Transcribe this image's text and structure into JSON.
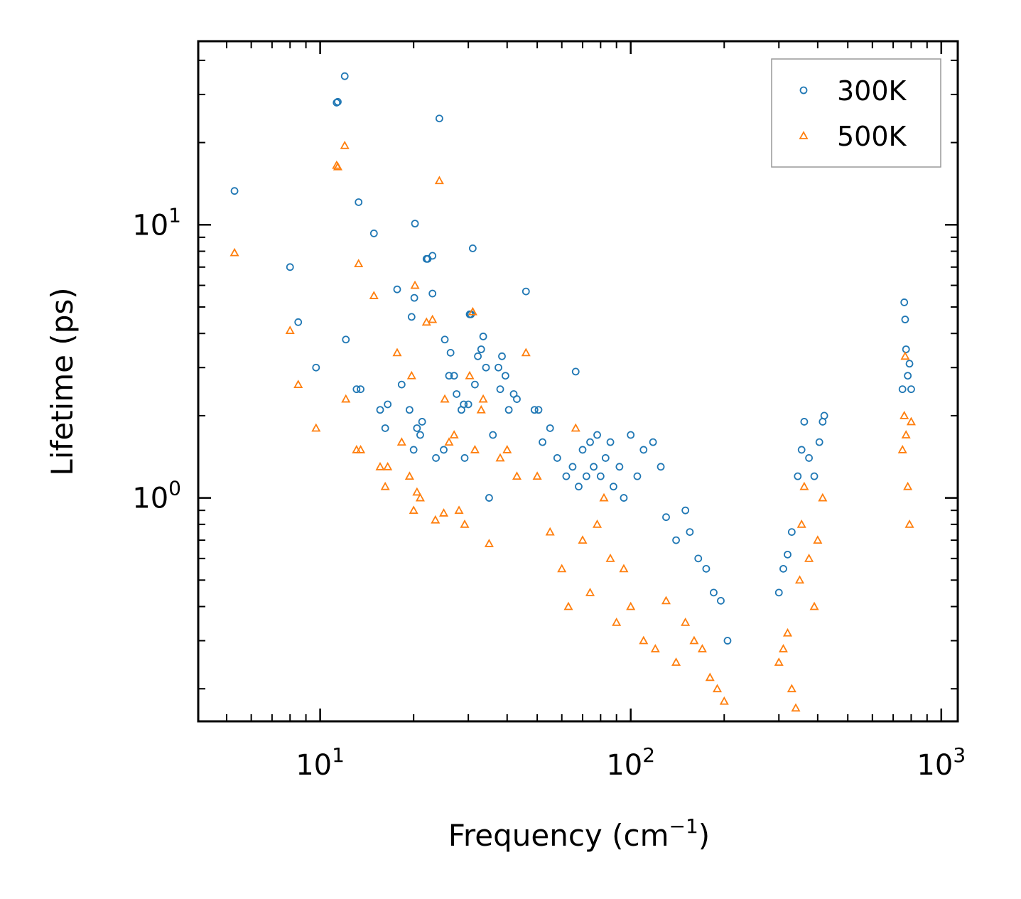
{
  "chart_data": {
    "type": "scatter",
    "title": "",
    "xlabel": "Frequency (cm",
    "xlabel_sup": "−1",
    "xlabel_end": ")",
    "ylabel": "Lifetime (ps)",
    "xscale": "log",
    "yscale": "log",
    "xlim": [
      4.05,
      1130
    ],
    "ylim": [
      0.152,
      47
    ],
    "x_ticks": [
      {
        "value": 10,
        "base": "10",
        "exp": "1"
      },
      {
        "value": 100,
        "base": "10",
        "exp": "2"
      },
      {
        "value": 1000,
        "base": "10",
        "exp": "3"
      }
    ],
    "y_ticks": [
      {
        "value": 1,
        "base": "10",
        "exp": "0"
      },
      {
        "value": 10,
        "base": "10",
        "exp": "1"
      }
    ],
    "legend_position": "top-right",
    "series": [
      {
        "name": "300K",
        "marker": "circle",
        "color": "#1f77b4",
        "points": [
          [
            5.3,
            13.3
          ],
          [
            8.0,
            7.0
          ],
          [
            8.5,
            4.4
          ],
          [
            9.7,
            3.0
          ],
          [
            11.3,
            28.0
          ],
          [
            11.4,
            28.2
          ],
          [
            12.0,
            35.0
          ],
          [
            12.1,
            3.8
          ],
          [
            13.1,
            2.5
          ],
          [
            13.3,
            12.1
          ],
          [
            13.5,
            2.5
          ],
          [
            14.9,
            9.3
          ],
          [
            15.6,
            2.1
          ],
          [
            16.5,
            2.2
          ],
          [
            16.2,
            1.8
          ],
          [
            17.7,
            5.8
          ],
          [
            18.3,
            2.6
          ],
          [
            19.4,
            2.1
          ],
          [
            19.7,
            4.6
          ],
          [
            20.0,
            1.5
          ],
          [
            20.1,
            5.4
          ],
          [
            20.2,
            10.1
          ],
          [
            20.5,
            1.8
          ],
          [
            21.0,
            1.7
          ],
          [
            21.3,
            1.9
          ],
          [
            22.0,
            7.5
          ],
          [
            22.2,
            7.5
          ],
          [
            23.0,
            7.7
          ],
          [
            23.0,
            5.6
          ],
          [
            23.6,
            1.4
          ],
          [
            24.2,
            24.5
          ],
          [
            25.0,
            1.5
          ],
          [
            25.2,
            3.8
          ],
          [
            26.0,
            2.8
          ],
          [
            26.3,
            3.4
          ],
          [
            27.0,
            2.8
          ],
          [
            27.5,
            2.4
          ],
          [
            28.5,
            2.1
          ],
          [
            29.0,
            2.2
          ],
          [
            29.2,
            1.4
          ],
          [
            30.0,
            2.2
          ],
          [
            30.3,
            4.7
          ],
          [
            30.6,
            4.7
          ],
          [
            31.0,
            8.2
          ],
          [
            31.5,
            2.6
          ],
          [
            32.2,
            3.3
          ],
          [
            33.0,
            3.5
          ],
          [
            33.5,
            3.9
          ],
          [
            34.2,
            3.0
          ],
          [
            35.0,
            1.0
          ],
          [
            36.0,
            1.7
          ],
          [
            37.5,
            3.0
          ],
          [
            38.0,
            2.5
          ],
          [
            38.5,
            3.3
          ],
          [
            39.5,
            2.8
          ],
          [
            40.5,
            2.1
          ],
          [
            42.0,
            2.4
          ],
          [
            43.0,
            2.3
          ],
          [
            46.0,
            5.7
          ],
          [
            49.0,
            2.1
          ],
          [
            50.5,
            2.1
          ],
          [
            52.0,
            1.6
          ],
          [
            55.0,
            1.8
          ],
          [
            58.0,
            1.4
          ],
          [
            62.0,
            1.2
          ],
          [
            65.0,
            1.3
          ],
          [
            66.5,
            2.9
          ],
          [
            68.0,
            1.1
          ],
          [
            70.0,
            1.5
          ],
          [
            72.0,
            1.2
          ],
          [
            74.0,
            1.6
          ],
          [
            76.0,
            1.3
          ],
          [
            78.0,
            1.7
          ],
          [
            80.0,
            1.2
          ],
          [
            83.0,
            1.4
          ],
          [
            86.0,
            1.6
          ],
          [
            88.0,
            1.1
          ],
          [
            92.0,
            1.3
          ],
          [
            95.0,
            1.0
          ],
          [
            100.0,
            1.7
          ],
          [
            105.0,
            1.2
          ],
          [
            110.0,
            1.5
          ],
          [
            118.0,
            1.6
          ],
          [
            125.0,
            1.3
          ],
          [
            130.0,
            0.85
          ],
          [
            140.0,
            0.7
          ],
          [
            150.0,
            0.9
          ],
          [
            155.0,
            0.75
          ],
          [
            165.0,
            0.6
          ],
          [
            175.0,
            0.55
          ],
          [
            185.0,
            0.45
          ],
          [
            195.0,
            0.42
          ],
          [
            205.0,
            0.3
          ],
          [
            300.0,
            0.45
          ],
          [
            310.0,
            0.55
          ],
          [
            320.0,
            0.62
          ],
          [
            330.0,
            0.75
          ],
          [
            345.0,
            1.2
          ],
          [
            355.0,
            1.5
          ],
          [
            362.0,
            1.9
          ],
          [
            375.0,
            1.4
          ],
          [
            390.0,
            1.2
          ],
          [
            405.0,
            1.6
          ],
          [
            415.0,
            1.9
          ],
          [
            420.0,
            2.0
          ],
          [
            750.0,
            2.5
          ],
          [
            760.0,
            5.2
          ],
          [
            765.0,
            4.5
          ],
          [
            770.0,
            3.5
          ],
          [
            780.0,
            2.8
          ],
          [
            790.0,
            3.1
          ],
          [
            800.0,
            2.5
          ]
        ]
      },
      {
        "name": "500K",
        "marker": "triangle",
        "color": "#ff7f0e",
        "points": [
          [
            5.3,
            7.9
          ],
          [
            8.0,
            4.1
          ],
          [
            8.5,
            2.6
          ],
          [
            9.7,
            1.8
          ],
          [
            11.3,
            16.5
          ],
          [
            11.4,
            16.3
          ],
          [
            12.0,
            19.5
          ],
          [
            12.1,
            2.3
          ],
          [
            13.1,
            1.5
          ],
          [
            13.3,
            7.2
          ],
          [
            13.5,
            1.5
          ],
          [
            14.9,
            5.5
          ],
          [
            15.6,
            1.3
          ],
          [
            16.2,
            1.1
          ],
          [
            16.5,
            1.3
          ],
          [
            17.7,
            3.4
          ],
          [
            18.3,
            1.6
          ],
          [
            19.4,
            1.2
          ],
          [
            19.7,
            2.8
          ],
          [
            20.0,
            0.9
          ],
          [
            20.2,
            6.0
          ],
          [
            20.5,
            1.05
          ],
          [
            21.0,
            1.0
          ],
          [
            22.0,
            4.4
          ],
          [
            23.0,
            4.5
          ],
          [
            23.5,
            0.83
          ],
          [
            24.2,
            14.5
          ],
          [
            25.0,
            0.88
          ],
          [
            25.2,
            2.3
          ],
          [
            26.0,
            1.6
          ],
          [
            27.0,
            1.7
          ],
          [
            28.0,
            0.9
          ],
          [
            29.2,
            0.8
          ],
          [
            30.3,
            2.8
          ],
          [
            31.0,
            4.8
          ],
          [
            31.5,
            1.5
          ],
          [
            33.0,
            2.1
          ],
          [
            33.5,
            2.3
          ],
          [
            35.0,
            0.68
          ],
          [
            38.0,
            1.4
          ],
          [
            40.0,
            1.5
          ],
          [
            43.0,
            1.2
          ],
          [
            46.0,
            3.4
          ],
          [
            50.0,
            1.2
          ],
          [
            55.0,
            0.75
          ],
          [
            60.0,
            0.55
          ],
          [
            63.0,
            0.4
          ],
          [
            66.5,
            1.8
          ],
          [
            70.0,
            0.7
          ],
          [
            74.0,
            0.45
          ],
          [
            78.0,
            0.8
          ],
          [
            82.0,
            1.0
          ],
          [
            86.0,
            0.6
          ],
          [
            90.0,
            0.35
          ],
          [
            95.0,
            0.55
          ],
          [
            100.0,
            0.4
          ],
          [
            110.0,
            0.3
          ],
          [
            120.0,
            0.28
          ],
          [
            130.0,
            0.42
          ],
          [
            140.0,
            0.25
          ],
          [
            150.0,
            0.35
          ],
          [
            160.0,
            0.3
          ],
          [
            170.0,
            0.28
          ],
          [
            180.0,
            0.22
          ],
          [
            190.0,
            0.2
          ],
          [
            200.0,
            0.18
          ],
          [
            300.0,
            0.25
          ],
          [
            310.0,
            0.28
          ],
          [
            320.0,
            0.32
          ],
          [
            330.0,
            0.2
          ],
          [
            340.0,
            0.17
          ],
          [
            350.0,
            0.5
          ],
          [
            355.0,
            0.8
          ],
          [
            362.0,
            1.1
          ],
          [
            375.0,
            0.6
          ],
          [
            390.0,
            0.4
          ],
          [
            400.0,
            0.7
          ],
          [
            415.0,
            1.0
          ],
          [
            750.0,
            1.5
          ],
          [
            760.0,
            2.0
          ],
          [
            765.0,
            3.3
          ],
          [
            770.0,
            1.7
          ],
          [
            780.0,
            1.1
          ],
          [
            790.0,
            0.8
          ],
          [
            800.0,
            1.9
          ]
        ]
      }
    ]
  }
}
